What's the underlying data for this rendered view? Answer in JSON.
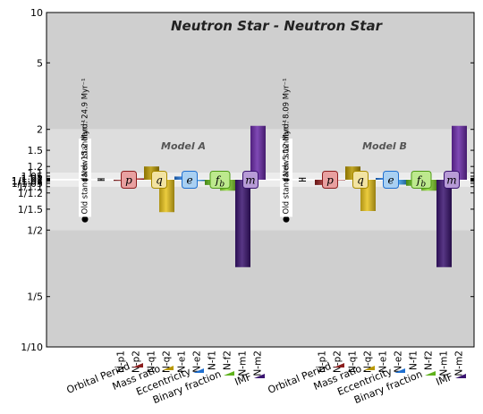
{
  "chart_data": {
    "type": "bar",
    "title": "Neutron Star - Neutron Star",
    "scale": "log",
    "y_ticks": [
      {
        "value": 10,
        "label": "10"
      },
      {
        "value": 5,
        "label": "5"
      },
      {
        "value": 2,
        "label": "2"
      },
      {
        "value": 1.5,
        "label": "1.5"
      },
      {
        "value": 1.2,
        "label": "1.2"
      },
      {
        "value": 1.1,
        "label": "1.1"
      },
      {
        "value": 1.05,
        "label": "1.05"
      },
      {
        "value": 1.02,
        "label": "1.02"
      },
      {
        "value": 1.01,
        "label": "1.01"
      },
      {
        "value": 1,
        "label": "1"
      },
      {
        "value": 0.990099,
        "label": "1/1.01"
      },
      {
        "value": 0.980392,
        "label": "1/1.02"
      },
      {
        "value": 0.952381,
        "label": "1/1.05"
      },
      {
        "value": 0.909091,
        "label": "1/1.1"
      },
      {
        "value": 0.833333,
        "label": "1/1.2"
      },
      {
        "value": 0.666667,
        "label": "1/1.5"
      },
      {
        "value": 0.5,
        "label": "1/2"
      },
      {
        "value": 0.2,
        "label": "1/5"
      },
      {
        "value": 0.1,
        "label": "1/10"
      }
    ],
    "bands": [
      {
        "from": 2,
        "to": 10,
        "color": "#cfcfcf"
      },
      {
        "from": 1.1,
        "to": 2,
        "color": "#dddddd"
      },
      {
        "from": 1.01,
        "to": 1.1,
        "color": "#ececec"
      },
      {
        "from": 0.990099,
        "to": 1.01,
        "color": "#ffffff"
      },
      {
        "from": 0.909091,
        "to": 0.990099,
        "color": "#ececec"
      },
      {
        "from": 0.5,
        "to": 0.909091,
        "color": "#dddddd"
      },
      {
        "from": 0.1,
        "to": 0.5,
        "color": "#cfcfcf"
      }
    ],
    "categories": [
      "N-p1",
      "N-p2",
      "N-q1",
      "N-q2",
      "N-e1",
      "N-e2",
      "N-f1",
      "N-f2",
      "N-m1",
      "N-m2"
    ],
    "category_colors": [
      "#8b1d1d",
      "#c02525",
      "#b89800",
      "#e8c31c",
      "#1f6fcf",
      "#3aa0ee",
      "#5fb21c",
      "#8ad934",
      "#3a1470",
      "#6a2aa8"
    ],
    "panels": [
      {
        "name": "Model A",
        "values": [
          0.985,
          1.019,
          1.2,
          0.64,
          1.045,
          0.982,
          0.93,
          0.86,
          0.3,
          2.1
        ],
        "new_standard_label": "New standard: 24.9  Myr⁻¹",
        "old_standard_label": "Old standard: 15.2  Myr⁻¹",
        "error_bar": {
          "low": 0.991,
          "high": 1.013
        }
      },
      {
        "name": "Model B",
        "values": [
          0.93,
          1.0,
          1.2,
          0.65,
          1.025,
          0.935,
          0.92,
          0.86,
          0.3,
          2.1
        ],
        "new_standard_label": "New standard: 8.09  Myr⁻¹",
        "old_standard_label": "Old standard: 5.12  Myr⁻¹",
        "error_bar": {
          "low": 0.982,
          "high": 1.021
        }
      }
    ],
    "param_labels": [
      {
        "symbol": "p",
        "color": "#e8a0a0",
        "border": "#8b1d1d"
      },
      {
        "symbol": "q",
        "color": "#f2e3a2",
        "border": "#a88a00"
      },
      {
        "symbol": "e",
        "color": "#a9d0f2",
        "border": "#1f6fcf"
      },
      {
        "symbol": "f",
        "subscript": "b",
        "color": "#bde98e",
        "border": "#4f9a16"
      },
      {
        "symbol": "m",
        "color": "#b79bd6",
        "border": "#3a1470"
      }
    ],
    "group_labels": [
      "Orbital Period",
      "Mass ratio",
      "Eccentricity",
      "Binary fraction",
      "IMF"
    ]
  }
}
